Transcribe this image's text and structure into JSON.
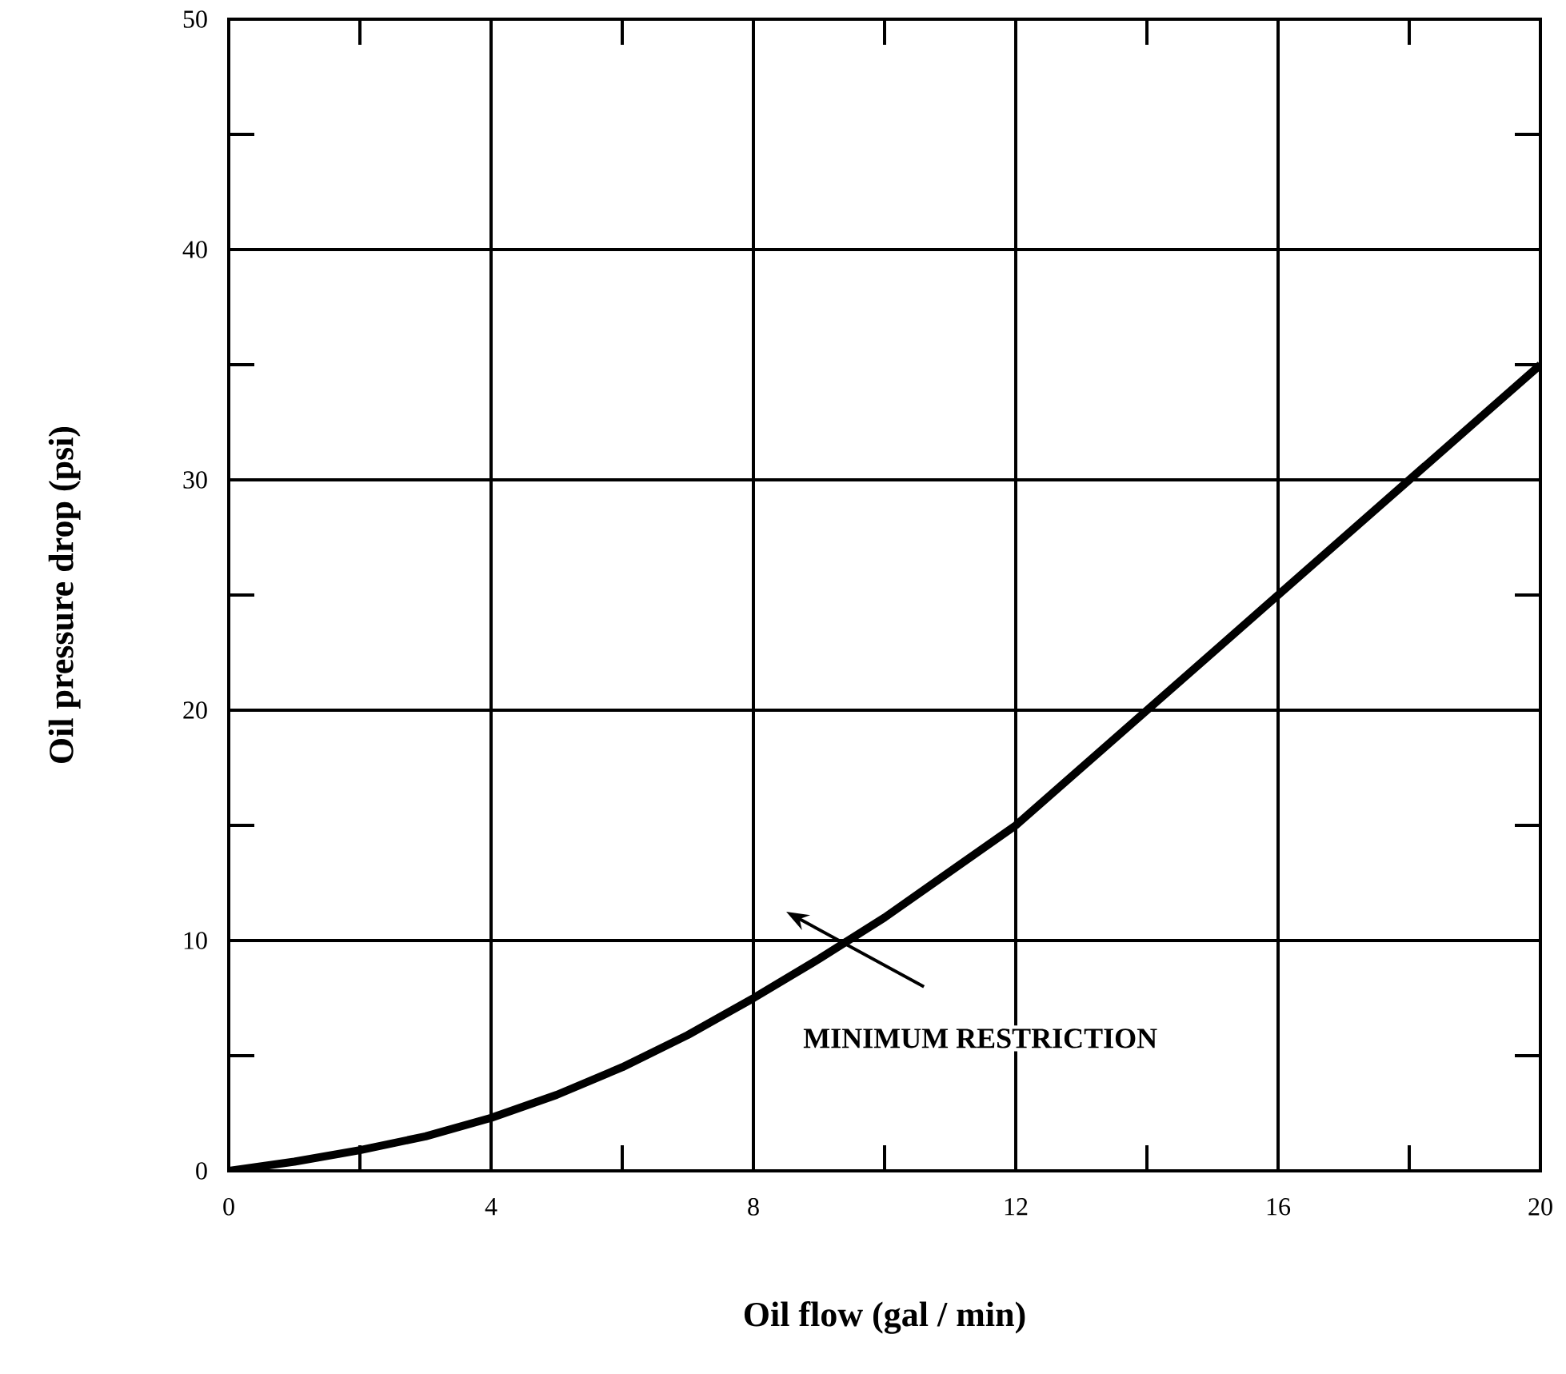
{
  "chart_data": {
    "type": "line",
    "xlabel": "Oil flow (gal / min)",
    "ylabel": "Oil pressure drop (psi)",
    "x": [
      0,
      1,
      2,
      3,
      4,
      5,
      6,
      7,
      8,
      9,
      10,
      11,
      12,
      13,
      14,
      15,
      16,
      17,
      18,
      19,
      20
    ],
    "series": [
      {
        "color": "#000000",
        "values": [
          0,
          0.4,
          0.9,
          1.5,
          2.3,
          3.3,
          4.5,
          5.9,
          7.5,
          9.2,
          11,
          13,
          15,
          17.5,
          20,
          22.5,
          25,
          27.5,
          30,
          32.5,
          35
        ]
      }
    ],
    "xlim": [
      0,
      20
    ],
    "ylim": [
      0,
      50
    ],
    "xticks": [
      0,
      {
        "value": 2,
        "label": null
      },
      4,
      {
        "value": 6,
        "label": null
      },
      8,
      {
        "value": 10,
        "label": null
      },
      12,
      {
        "value": 14,
        "label": null
      },
      16,
      {
        "value": 18,
        "label": null
      },
      20
    ],
    "yticks": [
      0,
      {
        "value": 5,
        "label": null
      },
      10,
      {
        "value": 15,
        "label": null
      },
      20,
      {
        "value": 25,
        "label": null
      },
      30,
      {
        "value": 35,
        "label": null
      },
      40,
      {
        "value": 45,
        "label": null
      },
      50
    ],
    "grid": true,
    "marker": "none",
    "line_style": "solid",
    "annotations": [
      "MINIMUM  RESTRICTION"
    ]
  }
}
